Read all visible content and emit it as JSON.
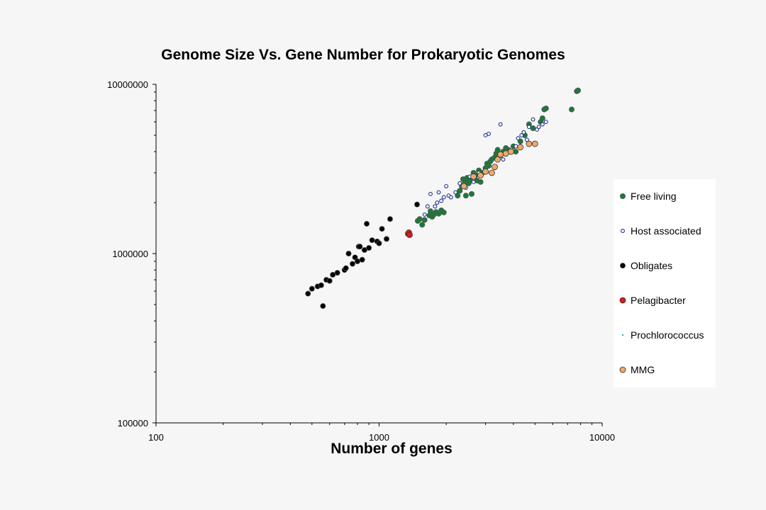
{
  "chart_data": {
    "type": "scatter",
    "title": "Genome Size Vs. Gene Number for Prokaryotic Genomes",
    "xlabel": "Number of genes",
    "ylabel": "",
    "x_scale": "log",
    "y_scale": "log",
    "xlim": [
      100,
      10000
    ],
    "ylim": [
      100000,
      10000000
    ],
    "x_ticks": [
      "100",
      "1000",
      "10000"
    ],
    "y_ticks": [
      "10000000",
      "1000000",
      "100000"
    ],
    "grid": false,
    "legend_position": "right",
    "series": [
      {
        "name": "Free living",
        "color": "#1a7a36",
        "marker": "filled-dark",
        "points": [
          [
            1490,
            1560000
          ],
          [
            1520,
            1600000
          ],
          [
            1560,
            1480000
          ],
          [
            1600,
            1580000
          ],
          [
            1680,
            1680000
          ],
          [
            1700,
            1780000
          ],
          [
            1730,
            1650000
          ],
          [
            1760,
            1700000
          ],
          [
            1800,
            1760000
          ],
          [
            1850,
            1720000
          ],
          [
            1900,
            1800000
          ],
          [
            1950,
            1750000
          ],
          [
            2250,
            2200000
          ],
          [
            2300,
            2350000
          ],
          [
            2350,
            2500000
          ],
          [
            2380,
            2750000
          ],
          [
            2420,
            2650000
          ],
          [
            2450,
            2200000
          ],
          [
            2480,
            2800000
          ],
          [
            2520,
            2600000
          ],
          [
            2560,
            2700000
          ],
          [
            2600,
            2250000
          ],
          [
            2650,
            3000000
          ],
          [
            2700,
            2900000
          ],
          [
            2750,
            2700000
          ],
          [
            2800,
            3100000
          ],
          [
            2850,
            2650000
          ],
          [
            2900,
            3000000
          ],
          [
            3000,
            3200000
          ],
          [
            3050,
            3400000
          ],
          [
            3100,
            3300000
          ],
          [
            3150,
            3500000
          ],
          [
            3200,
            3600000
          ],
          [
            3300,
            3700000
          ],
          [
            3350,
            3900000
          ],
          [
            3400,
            4100000
          ],
          [
            3500,
            3800000
          ],
          [
            3600,
            4000000
          ],
          [
            3700,
            4200000
          ],
          [
            3800,
            4100000
          ],
          [
            4000,
            4300000
          ],
          [
            4100,
            4000000
          ],
          [
            4300,
            4600000
          ],
          [
            4500,
            5000000
          ],
          [
            4700,
            5800000
          ],
          [
            4900,
            5500000
          ],
          [
            5300,
            6000000
          ],
          [
            5400,
            6300000
          ],
          [
            5600,
            7200000
          ],
          [
            5500,
            7100000
          ],
          [
            7300,
            7100000
          ],
          [
            7700,
            9100000
          ],
          [
            7800,
            9200000
          ]
        ]
      },
      {
        "name": "Host associated",
        "color": "#1f2f8f",
        "marker": "open",
        "points": [
          [
            1600,
            1700000
          ],
          [
            1650,
            1900000
          ],
          [
            1700,
            2250000
          ],
          [
            1780,
            1900000
          ],
          [
            1820,
            2000000
          ],
          [
            1850,
            2300000
          ],
          [
            1900,
            2050000
          ],
          [
            1950,
            2150000
          ],
          [
            2000,
            2500000
          ],
          [
            2050,
            2200000
          ],
          [
            2100,
            2150000
          ],
          [
            2200,
            2300000
          ],
          [
            2300,
            2600000
          ],
          [
            2450,
            2450000
          ],
          [
            2550,
            2850000
          ],
          [
            2650,
            2650000
          ],
          [
            2800,
            3000000
          ],
          [
            3000,
            5000000
          ],
          [
            3100,
            5100000
          ],
          [
            3300,
            3200000
          ],
          [
            3500,
            5800000
          ],
          [
            3600,
            3600000
          ],
          [
            3800,
            4000000
          ],
          [
            4100,
            4300000
          ],
          [
            4200,
            4800000
          ],
          [
            4350,
            5000000
          ],
          [
            4450,
            5200000
          ],
          [
            4600,
            4700000
          ],
          [
            4700,
            5600000
          ],
          [
            4900,
            6200000
          ],
          [
            5100,
            5400000
          ],
          [
            5200,
            5600000
          ],
          [
            5400,
            5800000
          ],
          [
            5600,
            6000000
          ]
        ]
      },
      {
        "name": "Obligates",
        "color": "#000000",
        "marker": "filled-dark",
        "points": [
          [
            480,
            580000
          ],
          [
            500,
            620000
          ],
          [
            530,
            640000
          ],
          [
            550,
            650000
          ],
          [
            560,
            490000
          ],
          [
            580,
            700000
          ],
          [
            600,
            690000
          ],
          [
            620,
            750000
          ],
          [
            650,
            770000
          ],
          [
            700,
            800000
          ],
          [
            710,
            820000
          ],
          [
            730,
            1000000
          ],
          [
            760,
            870000
          ],
          [
            780,
            950000
          ],
          [
            800,
            900000
          ],
          [
            810,
            1100000
          ],
          [
            820,
            1100000
          ],
          [
            840,
            920000
          ],
          [
            860,
            1050000
          ],
          [
            880,
            1500000
          ],
          [
            900,
            1080000
          ],
          [
            930,
            1200000
          ],
          [
            980,
            1180000
          ],
          [
            1000,
            1150000
          ],
          [
            1030,
            1400000
          ],
          [
            1080,
            1220000
          ],
          [
            1120,
            1600000
          ],
          [
            1480,
            1950000
          ]
        ]
      },
      {
        "name": "Pelagibacter",
        "color": "#e01818",
        "marker": "filled",
        "points": [
          [
            1350,
            1310000
          ],
          [
            1360,
            1330000
          ],
          [
            1370,
            1290000
          ]
        ]
      },
      {
        "name": "Prochlorococcus",
        "color": "#2aa8c8",
        "marker": "dot",
        "points": []
      },
      {
        "name": "MMG",
        "color": "#f0a868",
        "marker": "filled",
        "points": [
          [
            2400,
            2500000
          ],
          [
            2650,
            2850000
          ],
          [
            2850,
            2900000
          ],
          [
            3000,
            3050000
          ],
          [
            3200,
            3000000
          ],
          [
            3300,
            3250000
          ],
          [
            3400,
            3600000
          ],
          [
            3500,
            3850000
          ],
          [
            3700,
            3900000
          ],
          [
            3900,
            4000000
          ],
          [
            4300,
            4250000
          ],
          [
            4700,
            4450000
          ],
          [
            5000,
            4450000
          ]
        ]
      }
    ]
  }
}
